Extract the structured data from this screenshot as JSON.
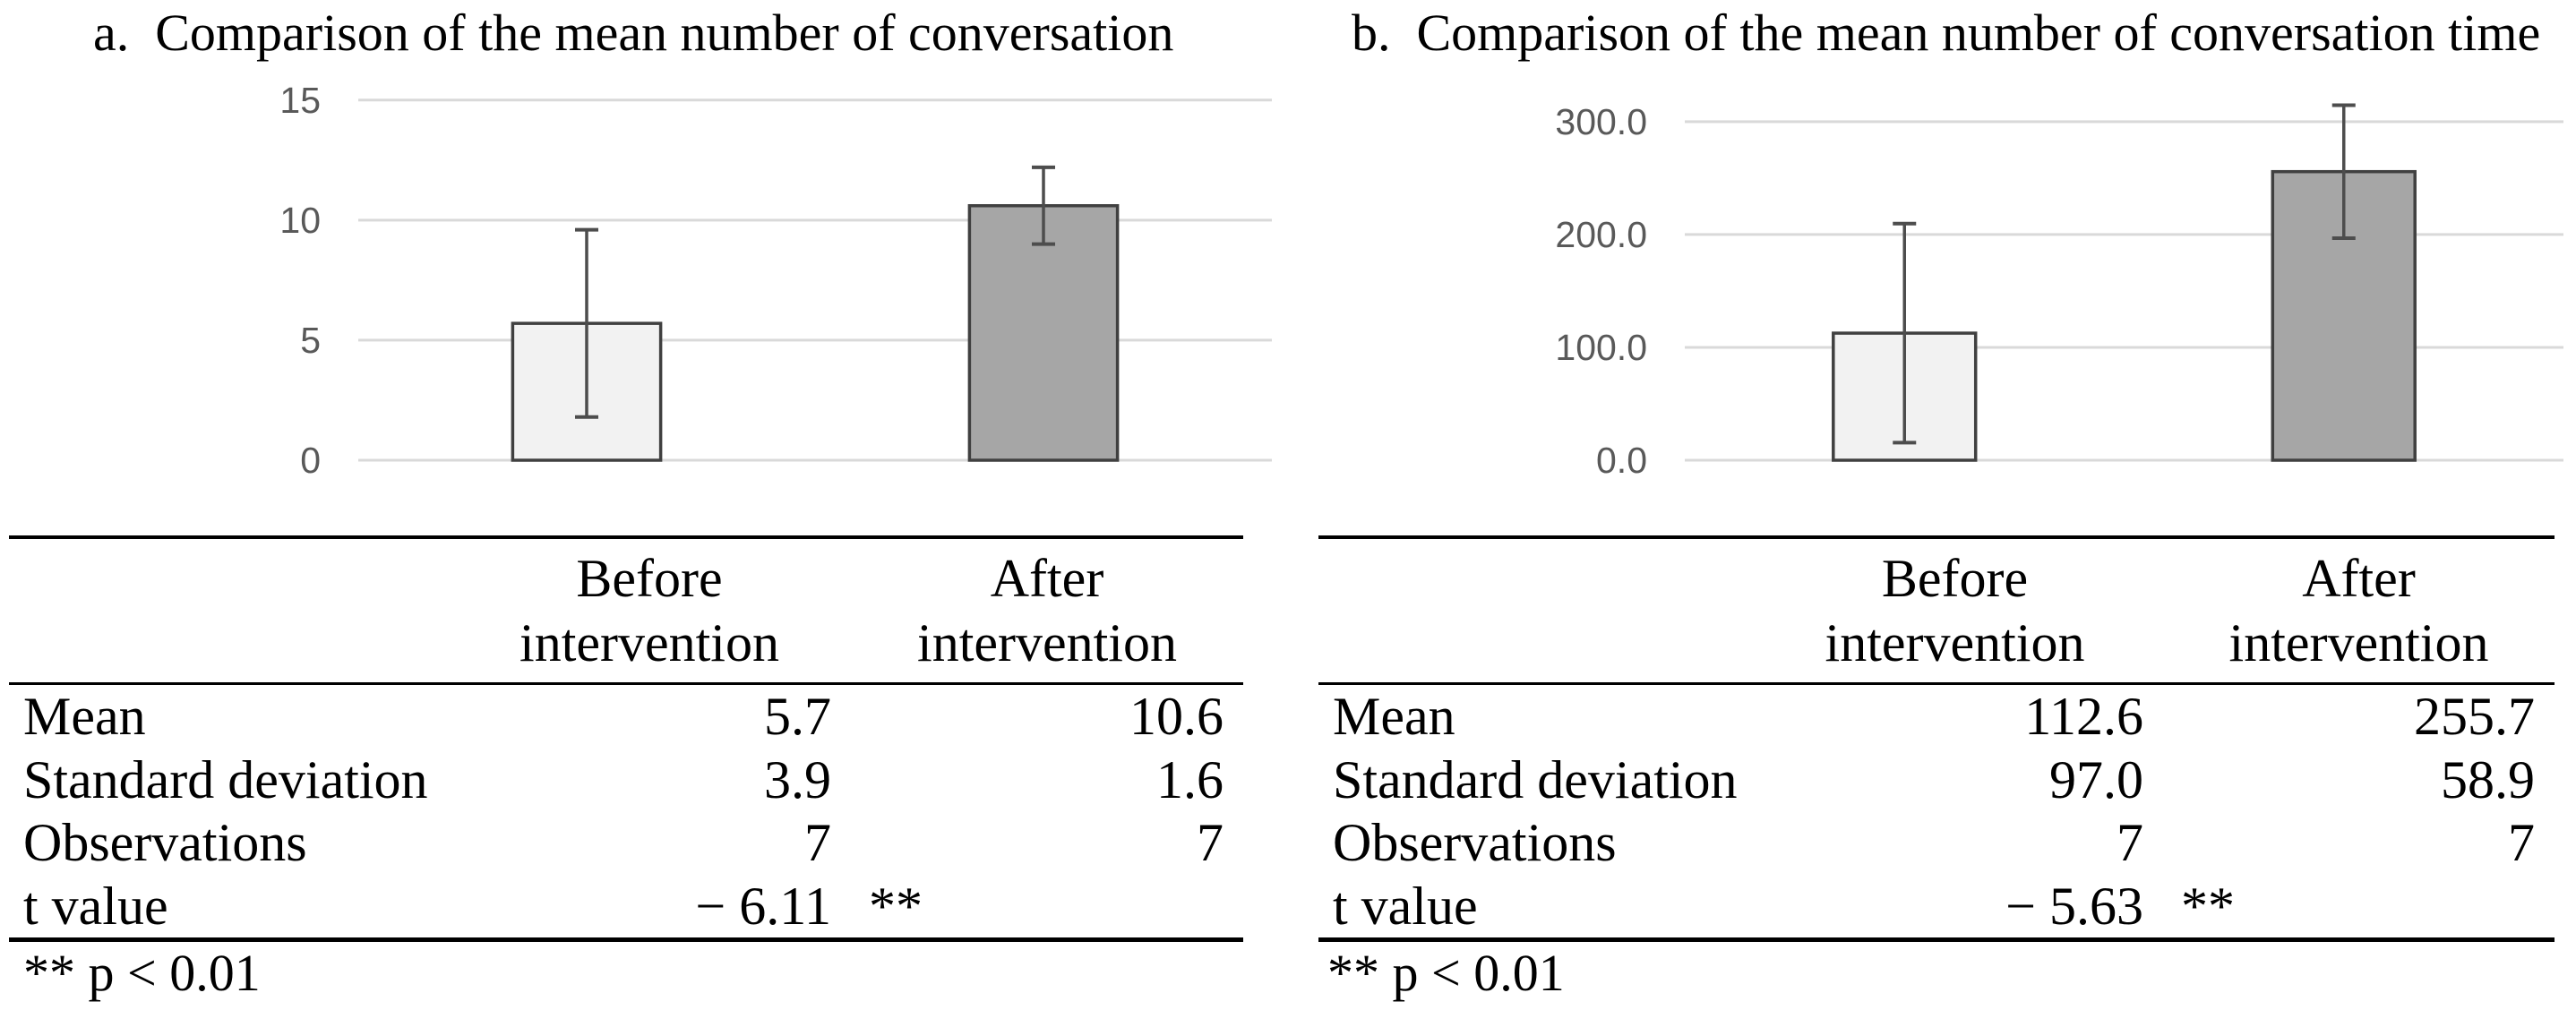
{
  "colors": {
    "background": "#ffffff",
    "bar_before_fill": "#f2f2f2",
    "bar_after_fill": "#a6a6a6",
    "bar_border": "#404040",
    "error_bar": "#4d4d4d",
    "gridline": "#d9d9d9",
    "tick_label": "#595959",
    "table_rule": "#000000",
    "text": "#000000"
  },
  "chart_data": [
    {
      "type": "bar",
      "panel": "a",
      "title": "a.  Comparison of the mean number of conversation",
      "categories": [
        "Before intervention",
        "After intervention"
      ],
      "values": [
        5.7,
        10.6
      ],
      "error_sd": [
        3.9,
        1.6
      ],
      "bar_fills": [
        "#f2f2f2",
        "#a6a6a6"
      ],
      "yticks": [
        0,
        5,
        10,
        15
      ],
      "ytick_labels": [
        "0",
        "5",
        "10",
        "15"
      ],
      "ylim": [
        0,
        15.7
      ],
      "xlabel": "",
      "ylabel": "",
      "grid": true,
      "legend": "none"
    },
    {
      "type": "bar",
      "panel": "b",
      "title": "b.  Comparison of the mean number of conversation time",
      "categories": [
        "Before intervention",
        "After intervention"
      ],
      "values": [
        112.6,
        255.7
      ],
      "error_sd": [
        97.0,
        58.9
      ],
      "bar_fills": [
        "#f2f2f2",
        "#a6a6a6"
      ],
      "yticks": [
        0,
        100,
        200,
        300
      ],
      "ytick_labels": [
        "0.0",
        "100.0",
        "200.0",
        "300.0"
      ],
      "ylim": [
        0,
        334
      ],
      "xlabel": "",
      "ylabel": "",
      "grid": true,
      "legend": "none"
    }
  ],
  "figure": {
    "panels": [
      {
        "label": "a",
        "title": "a.  Comparison of the mean number of conversation",
        "table": {
          "columns": [
            {
              "line1": "Before",
              "line2": "intervention"
            },
            {
              "line1": "After",
              "line2": "intervention"
            }
          ],
          "rows": [
            {
              "label": "Mean",
              "before": "5.7",
              "after": "10.6"
            },
            {
              "label": "Standard deviation",
              "before": "3.9",
              "after": "1.6"
            },
            {
              "label": "Observations",
              "before": "7",
              "after": "7"
            },
            {
              "label": "t value",
              "before": "− 6.11",
              "after": "**"
            }
          ]
        },
        "footnote": "** p < 0.01"
      },
      {
        "label": "b",
        "title": "b.  Comparison of the mean number of conversation time",
        "table": {
          "columns": [
            {
              "line1": "Before",
              "line2": "intervention"
            },
            {
              "line1": "After",
              "line2": "intervention"
            }
          ],
          "rows": [
            {
              "label": "Mean",
              "before": "112.6",
              "after": "255.7"
            },
            {
              "label": "Standard deviation",
              "before": "97.0",
              "after": "58.9"
            },
            {
              "label": "Observations",
              "before": "7",
              "after": "7"
            },
            {
              "label": "t value",
              "before": "− 5.63",
              "after": "**"
            }
          ]
        },
        "footnote": "** p < 0.01"
      }
    ]
  }
}
